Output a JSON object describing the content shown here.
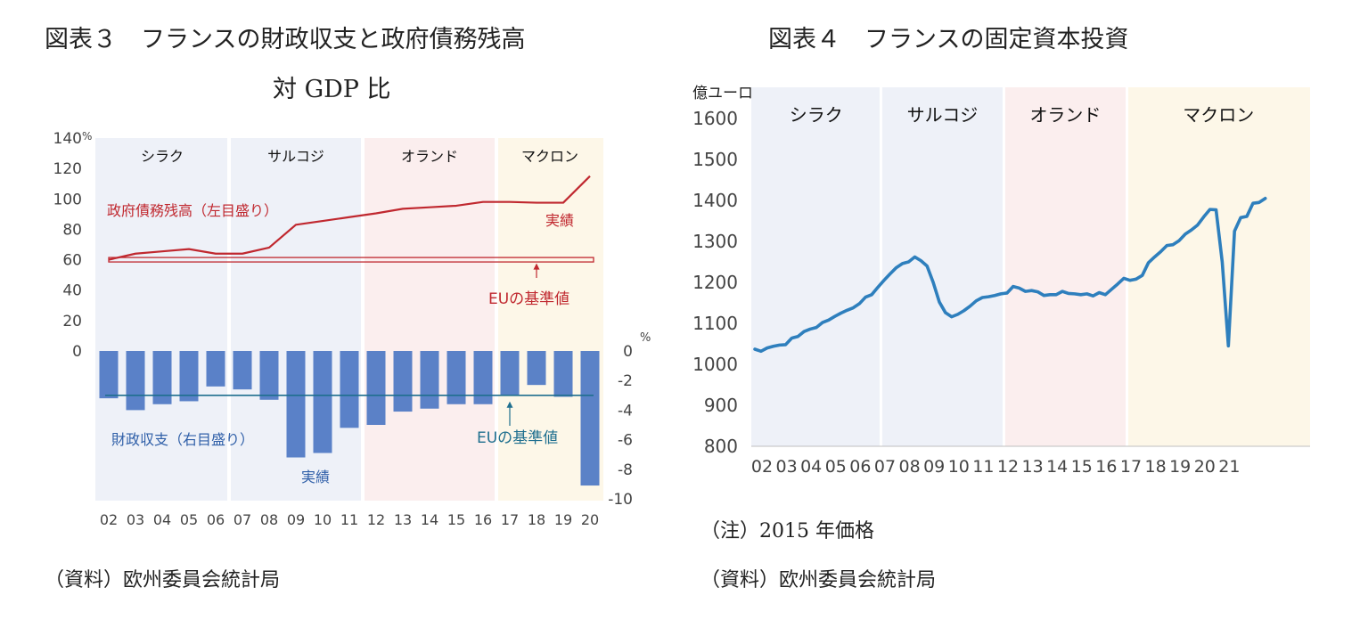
{
  "left_panel": {
    "title_line1": "図表３　フランスの財政収支と政府債務残高",
    "title_line2": "対 GDP 比",
    "source": "（資料）欧州委員会統計局"
  },
  "right_panel": {
    "title": "図表４　フランスの固定資本投資",
    "note": "（注）2015 年価格",
    "source": "（資料）欧州委員会統計局"
  },
  "chart_data": [
    {
      "type": "bar",
      "subtype": "bar+line, dual axis",
      "categories": [
        "02",
        "03",
        "04",
        "05",
        "06",
        "07",
        "08",
        "09",
        "10",
        "11",
        "12",
        "13",
        "14",
        "15",
        "16",
        "17",
        "18",
        "19",
        "20"
      ],
      "left_axis": {
        "unit": "%",
        "ticks": [
          0,
          20,
          40,
          60,
          80,
          100,
          120,
          140
        ],
        "ylim": [
          0,
          140
        ]
      },
      "right_axis": {
        "unit": "%",
        "ticks": [
          0,
          -2,
          -4,
          -6,
          -8,
          -10
        ],
        "ylim": [
          -10,
          0
        ]
      },
      "periods": [
        {
          "label": "シラク",
          "from": "02",
          "to": "06",
          "color": "#eef1f8"
        },
        {
          "label": "サルコジ",
          "from": "07",
          "to": "11",
          "color": "#eef1f8"
        },
        {
          "label": "オランド",
          "from": "12",
          "to": "16",
          "color": "#fbeeee"
        },
        {
          "label": "マクロン",
          "from": "17",
          "to": "20",
          "color": "#fdf7e8"
        }
      ],
      "series": [
        {
          "name": "政府債務残高（左目盛り）",
          "axis": "left",
          "kind": "line",
          "color": "#c0282f",
          "values": [
            60,
            64,
            65.5,
            67,
            64,
            64,
            68,
            83,
            85.5,
            88,
            90.5,
            93.5,
            94.5,
            95.5,
            98,
            98,
            97.5,
            97.5,
            115
          ]
        },
        {
          "name": "財政収支（右目盛り）",
          "axis": "right",
          "kind": "bar",
          "color": "#4f78c4",
          "values": [
            -3.2,
            -4.0,
            -3.6,
            -3.4,
            -2.4,
            -2.6,
            -3.3,
            -7.2,
            -6.9,
            -5.2,
            -5.0,
            -4.1,
            -3.9,
            -3.6,
            -3.6,
            -3.0,
            -2.3,
            -3.1,
            -9.1
          ]
        }
      ],
      "reference_lines": [
        {
          "label": "EUの基準値",
          "axis": "left",
          "value": 60,
          "color": "#c0282f"
        },
        {
          "label": "EUの基準値",
          "axis": "right",
          "value": -3,
          "color": "#1f6f8f"
        }
      ],
      "annotations": {
        "debt_actual": "実績",
        "deficit_actual": "実績"
      }
    },
    {
      "type": "line",
      "ylabel": "億ユーロ",
      "ylim": [
        800,
        1600
      ],
      "yticks": [
        800,
        900,
        1000,
        1100,
        1200,
        1300,
        1400,
        1500,
        1600
      ],
      "x_tick_labels": [
        "02",
        "03",
        "04",
        "05",
        "06",
        "07",
        "08",
        "09",
        "10",
        "11",
        "12",
        "13",
        "14",
        "15",
        "16",
        "17",
        "18",
        "19",
        "20",
        "21"
      ],
      "frequency": "quarterly",
      "x_start": "2002Q1",
      "periods": [
        {
          "label": "シラク",
          "from": "2002Q1",
          "to": "2007Q1",
          "color": "#eef1f8"
        },
        {
          "label": "サルコジ",
          "from": "2007Q2",
          "to": "2012Q1",
          "color": "#eef1f8"
        },
        {
          "label": "オランド",
          "from": "2012Q2",
          "to": "2017Q1",
          "color": "#fbeeee"
        },
        {
          "label": "マクロン",
          "from": "2017Q2",
          "to": "2022Q1",
          "color": "#fdf7e8"
        }
      ],
      "series": [
        {
          "name": "",
          "color": "#2e7fbd",
          "values": [
            1037,
            1032,
            1040,
            1044,
            1047,
            1048,
            1064,
            1068,
            1080,
            1086,
            1090,
            1102,
            1108,
            1117,
            1125,
            1132,
            1138,
            1148,
            1164,
            1170,
            1188,
            1205,
            1221,
            1236,
            1246,
            1250,
            1262,
            1253,
            1240,
            1200,
            1152,
            1126,
            1116,
            1122,
            1131,
            1142,
            1155,
            1163,
            1165,
            1168,
            1172,
            1174,
            1190,
            1186,
            1178,
            1180,
            1177,
            1168,
            1170,
            1170,
            1178,
            1173,
            1172,
            1170,
            1172,
            1167,
            1175,
            1170,
            1183,
            1196,
            1210,
            1205,
            1208,
            1217,
            1248,
            1262,
            1275,
            1290,
            1292,
            1302,
            1318,
            1328,
            1340,
            1360,
            1378,
            1377,
            1250,
            1045,
            1325,
            1358,
            1361,
            1393,
            1395,
            1405
          ]
        }
      ]
    }
  ]
}
